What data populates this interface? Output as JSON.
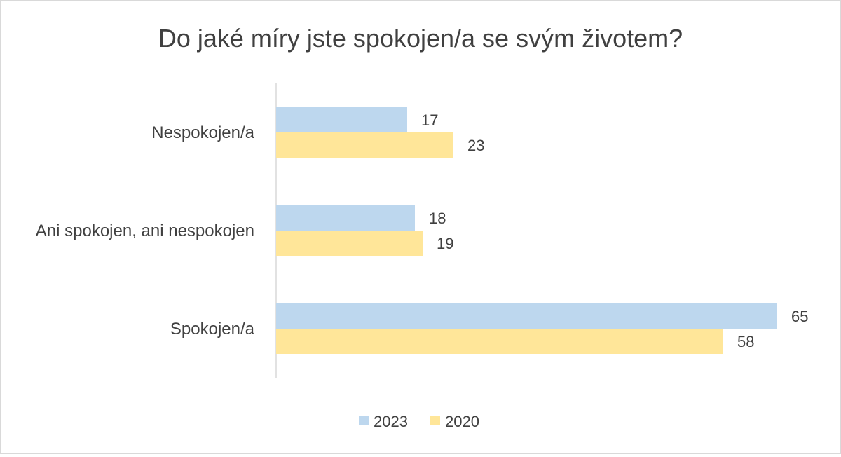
{
  "chart_data": {
    "type": "bar",
    "orientation": "horizontal",
    "title": "Do jaké míry jste spokojen/a se svým životem?",
    "categories": [
      "Nespokojen/a",
      "Ani spokojen, ani nespokojen",
      "Spokojen/a"
    ],
    "series": [
      {
        "name": "2023",
        "values": [
          17,
          18,
          65
        ],
        "color": "#bdd7ee"
      },
      {
        "name": "2020",
        "values": [
          23,
          19,
          58
        ],
        "color": "#ffe699"
      }
    ],
    "xlim": [
      0,
      65
    ],
    "grid": false,
    "legend": "bottom",
    "data_labels": true
  },
  "colors": {
    "text": "#404040",
    "axis": "#d9d9d9"
  }
}
